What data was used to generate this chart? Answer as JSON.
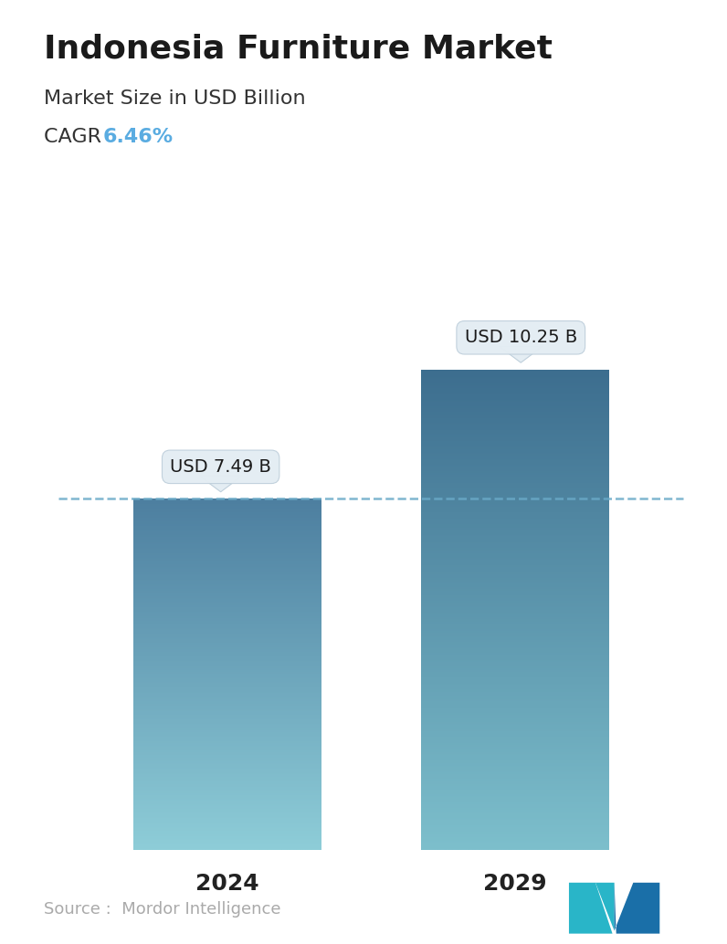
{
  "title": "Indonesia Furniture Market",
  "subtitle": "Market Size in USD Billion",
  "cagr_label": "CAGR ",
  "cagr_value": "6.46%",
  "cagr_color": "#5aace1",
  "categories": [
    "2024",
    "2029"
  ],
  "values": [
    7.49,
    10.25
  ],
  "bar_labels": [
    "USD 7.49 B",
    "USD 10.25 B"
  ],
  "bar_top_color": [
    "#4d7fa0",
    "#3d6e8f"
  ],
  "bar_bottom_color": [
    "#8ecdd8",
    "#7dbfcc"
  ],
  "dashed_line_color": "#6aaac8",
  "source_text": "Source :  Mordor Intelligence",
  "source_color": "#aaaaaa",
  "background_color": "#ffffff",
  "title_fontsize": 26,
  "subtitle_fontsize": 16,
  "cagr_fontsize": 16,
  "bar_label_fontsize": 14,
  "xlabel_fontsize": 18,
  "source_fontsize": 13,
  "ylim": [
    0,
    12.5
  ],
  "callout_bg": "#e4edf3",
  "callout_border": "#c0d0dc"
}
